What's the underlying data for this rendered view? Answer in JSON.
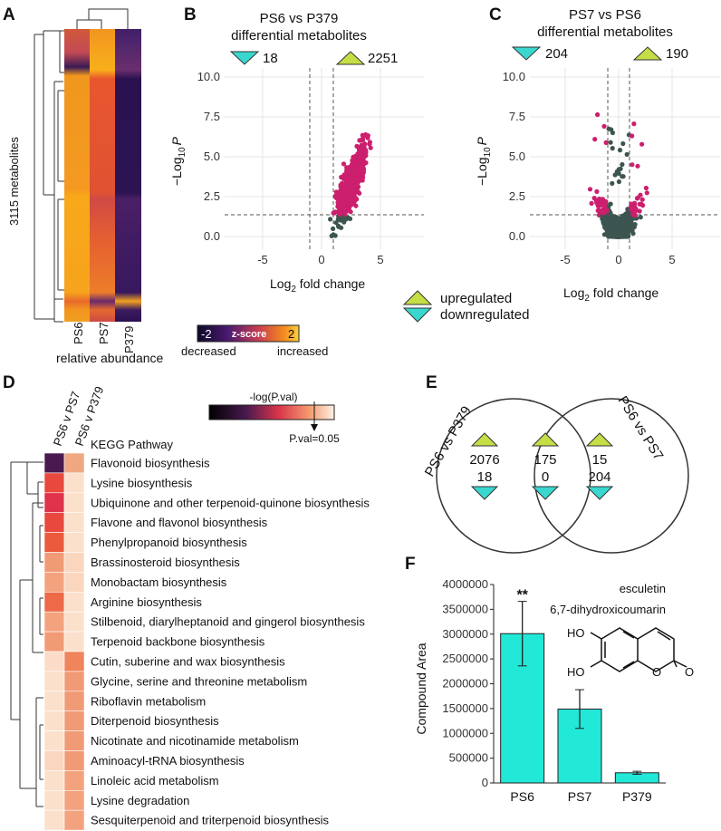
{
  "panel_labels": {
    "a": "A",
    "b": "B",
    "c": "C",
    "d": "D",
    "e": "E",
    "f": "F"
  },
  "colors": {
    "up_triangle": "#c4de46",
    "down_triangle": "#3ad7cf",
    "sig_point": "#cc1f6e",
    "ns_point": "#3d5550",
    "bar": "#22e8d8"
  },
  "heatmap_a": {
    "rows_label": "3115 metabolites",
    "columns": [
      "PS6",
      "PS7",
      "P379"
    ],
    "x_label": "relative abundance",
    "colorbar": {
      "min": "-2",
      "max": "2",
      "title": "z-score",
      "low_label": "decreased",
      "high_label": "increased"
    }
  },
  "volcano_b": {
    "title_line1": "PS6 vs P379",
    "title_line2": "differential metabolites",
    "down_count": "18",
    "up_count": "2251",
    "y_label": "−Log",
    "y_label_sub": "10",
    "y_label_var": "P",
    "x_label": "Log",
    "x_label_sub": "2",
    "x_label_rest": " fold change",
    "y_ticks": [
      "0.0",
      "2.5",
      "5.0",
      "7.5",
      "10.0"
    ],
    "x_ticks": [
      "-5",
      "0",
      "5"
    ]
  },
  "volcano_c": {
    "title_line1": "PS7 vs PS6",
    "title_line2": "differential metabolites",
    "down_count": "204",
    "up_count": "190",
    "y_label": "−Log",
    "y_label_sub": "10",
    "y_label_var": "P",
    "x_label": "Log",
    "x_label_sub": "2",
    "x_label_rest": " fold change",
    "y_ticks": [
      "0.0",
      "2.5",
      "5.0",
      "7.5",
      "10.0"
    ],
    "x_ticks": [
      "-5",
      "0",
      "5"
    ]
  },
  "legend": {
    "up": "upregulated",
    "down": "downregulated"
  },
  "heatmap_d": {
    "columns": [
      "PS6 v PS7",
      "PS6 v P379"
    ],
    "header": "KEGG Pathway",
    "colorbar_title": "-log(P.val)",
    "colorbar_note": "P.val=0.05",
    "pathways": [
      "Flavonoid biosynthesis",
      "Lysine biosynthesis",
      "Ubiquinone and other terpenoid-quinone biosynthesis",
      "Flavone and flavonol biosynthesis",
      "Phenylpropanoid biosynthesis",
      "Brassinosteroid biosynthesis",
      "Monobactam biosynthesis",
      "Arginine biosynthesis",
      "Stilbenoid, diarylheptanoid and gingerol biosynthesis",
      "Terpenoid backbone biosynthesis",
      "Cutin, suberine and wax biosynthesis",
      "Glycine, serine and threonine metabolism",
      "Riboflavin metabolism",
      "Diterpenoid biosynthesis",
      "Nicotinate and nicotinamide metabolism",
      "Aminoacyl-tRNA biosynthesis",
      "Linoleic acid metabolism",
      "Lysine degradation",
      "Sesquiterpenoid and triterpenoid biosynthesis"
    ],
    "cell_colors": [
      [
        "#4a1a4f",
        "#f0a882"
      ],
      [
        "#e8483e",
        "#fbe0cc"
      ],
      [
        "#e0324b",
        "#fbe0cc"
      ],
      [
        "#e8483e",
        "#fbe0cc"
      ],
      [
        "#ec5a3e",
        "#fbe0cc"
      ],
      [
        "#f19a76",
        "#fbd6bf"
      ],
      [
        "#f3a27e",
        "#fbd6bf"
      ],
      [
        "#ec6a48",
        "#fbe0cc"
      ],
      [
        "#f3a27e",
        "#fbe0cc"
      ],
      [
        "#f19a76",
        "#fbe0cc"
      ],
      [
        "#fbdcc8",
        "#f0845a"
      ],
      [
        "#fbe0cc",
        "#f19a76"
      ],
      [
        "#fbe0cc",
        "#f19a76"
      ],
      [
        "#fbe0cc",
        "#f19a76"
      ],
      [
        "#fbe0cc",
        "#f19a76"
      ],
      [
        "#fbd6bf",
        "#f19a76"
      ],
      [
        "#fbe0cc",
        "#f3a27e"
      ],
      [
        "#fbe0cc",
        "#f3a27e"
      ],
      [
        "#fbe0cc",
        "#f3a27e"
      ]
    ]
  },
  "venn_e": {
    "left_label": "PS6 vs P379",
    "right_label": "PS6 vs PS7",
    "left_up": "2076",
    "left_down": "18",
    "mid_up": "175",
    "mid_down": "0",
    "right_up": "15",
    "right_down": "204"
  },
  "chart_data": {
    "type": "bar",
    "title": "esculetin",
    "subtitle": "6,7-dihydroxicoumarin",
    "categories": [
      "PS6",
      "PS7",
      "P379"
    ],
    "values": [
      3010000,
      1490000,
      205000
    ],
    "errors": [
      650000,
      390000,
      30000
    ],
    "significance": [
      "**",
      "",
      ""
    ],
    "ylabel": "Compound Area",
    "ylim": [
      0,
      4000000
    ],
    "y_ticks": [
      "0",
      "500000",
      "1000000",
      "1500000",
      "2000000",
      "2500000",
      "3000000",
      "3500000",
      "4000000"
    ],
    "molecule_labels": [
      "HO",
      "HO"
    ]
  }
}
